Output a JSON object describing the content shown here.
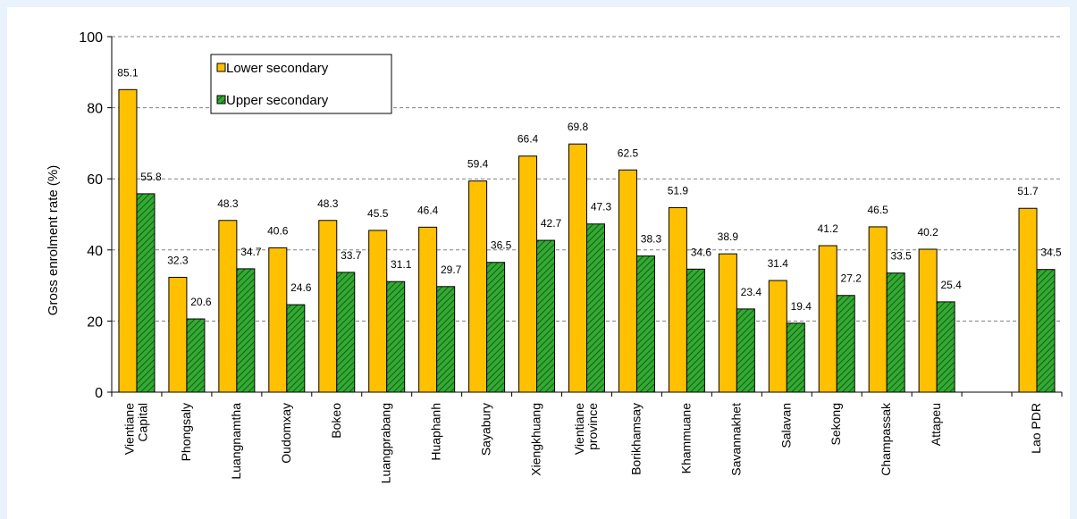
{
  "chart_data": {
    "type": "bar",
    "title": "",
    "xlabel": "",
    "ylabel": "Gross enrolment rate (%)",
    "ylim": [
      0,
      100
    ],
    "yticks": [
      0,
      20,
      40,
      60,
      80,
      100
    ],
    "grid": "horizontal dashed",
    "legend_position": "top-left",
    "categories": [
      "Vientiane Capital",
      "Phongsaly",
      "Luangnamtha",
      "Oudomxay",
      "Bokeo",
      "Luangprabang",
      "Huaphanh",
      "Sayabury",
      "Xiengkhuang",
      "Vientiane province",
      "Borikhamsay",
      "Khammuane",
      "Savannakhet",
      "Salavan",
      "Sekong",
      "Champassak",
      "Attapeu",
      "",
      "Lao PDR"
    ],
    "category_label_lines": [
      [
        "Vientiane",
        "Capital"
      ],
      [
        "Phongsaly"
      ],
      [
        "Luangnamtha"
      ],
      [
        "Oudomxay"
      ],
      [
        "Bokeo"
      ],
      [
        "Luangprabang"
      ],
      [
        "Huaphanh"
      ],
      [
        "Sayabury"
      ],
      [
        "Xiengkhuang"
      ],
      [
        "Vientiane",
        "province"
      ],
      [
        "Borikhamsay"
      ],
      [
        "Khammuane"
      ],
      [
        "Savannakhet"
      ],
      [
        "Salavan"
      ],
      [
        "Sekong"
      ],
      [
        "Champassak"
      ],
      [
        "Attapeu"
      ],
      [],
      [
        "Lao PDR"
      ]
    ],
    "series": [
      {
        "name": "Lower secondary",
        "color": "#ffc000",
        "values": [
          85.1,
          32.3,
          48.3,
          40.6,
          48.3,
          45.5,
          46.4,
          59.4,
          66.4,
          69.8,
          62.5,
          51.9,
          38.9,
          31.4,
          41.2,
          46.5,
          40.2,
          null,
          51.7
        ]
      },
      {
        "name": "Upper secondary",
        "color": "#33aa33",
        "pattern": "diagonal-hatch",
        "values": [
          55.8,
          20.6,
          34.7,
          24.6,
          33.7,
          31.1,
          29.7,
          36.5,
          42.7,
          47.3,
          38.3,
          34.6,
          23.4,
          19.4,
          27.2,
          33.5,
          25.4,
          null,
          34.5
        ]
      }
    ]
  }
}
